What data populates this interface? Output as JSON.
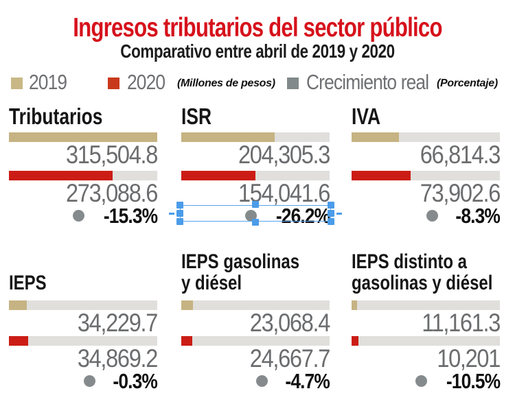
{
  "header": {
    "title": "Ingresos tributarios del sector público",
    "subtitle": "Comparativo entre abril de 2019 y 2020"
  },
  "legend": {
    "items": [
      {
        "label": "2019",
        "color": "#c9b886"
      },
      {
        "label": "2020",
        "color": "#c8391b"
      },
      {
        "label": "Crecimiento real",
        "color": "#82898b"
      }
    ],
    "notes": [
      {
        "text": "(Millones de pesos)"
      },
      {
        "text": "(Porcentaje)"
      }
    ]
  },
  "panels": [
    {
      "title_lines": [
        "Tributarios"
      ],
      "value_2019": "315,504.8",
      "value_2020": "273,088.6",
      "growth": "-15.3%",
      "fill_2019_pct": 100,
      "fill_2020_pct": 70,
      "selected": false
    },
    {
      "title_lines": [
        "ISR"
      ],
      "value_2019": "204,305.3",
      "value_2020": "154,041.6",
      "growth": "-26.2%",
      "fill_2019_pct": 63,
      "fill_2020_pct": 50,
      "selected": true
    },
    {
      "title_lines": [
        "IVA"
      ],
      "value_2019": "66,814.3",
      "value_2020": "73,902.6",
      "growth": "-8.3%",
      "fill_2019_pct": 32,
      "fill_2020_pct": 40,
      "selected": false
    },
    {
      "title_lines": [
        "IEPS"
      ],
      "value_2019": "34,229.7",
      "value_2020": "34,869.2",
      "growth": "-0.3%",
      "fill_2019_pct": 12,
      "fill_2020_pct": 13,
      "selected": false
    },
    {
      "title_lines": [
        "IEPS gasolinas",
        "y diésel"
      ],
      "value_2019": "23,068.4",
      "value_2020": "24,667.7",
      "growth": "-4.7%",
      "fill_2019_pct": 8,
      "fill_2020_pct": 7.5,
      "selected": false
    },
    {
      "title_lines": [
        "IEPS distinto a",
        "gasolinas y diésel"
      ],
      "value_2019": "11,161.3",
      "value_2020": "10,201",
      "growth": "-10.5%",
      "fill_2019_pct": 3.5,
      "fill_2020_pct": 4.5,
      "selected": false
    }
  ],
  "chart_data": {
    "type": "bar",
    "title": "Ingresos tributarios del sector público",
    "subtitle": "Comparativo entre abril de 2019 y 2020",
    "units": "Millones de pesos",
    "growth_units": "Porcentaje",
    "categories": [
      "Tributarios",
      "ISR",
      "IVA",
      "IEPS",
      "IEPS gasolinas y diésel",
      "IEPS distinto a gasolinas y diésel"
    ],
    "series": [
      {
        "name": "2019",
        "values": [
          315504.8,
          204305.3,
          66814.3,
          34229.7,
          23068.4,
          11161.3
        ]
      },
      {
        "name": "2020",
        "values": [
          273088.6,
          154041.6,
          73902.6,
          34869.2,
          24667.7,
          10201
        ]
      }
    ],
    "growth_real_pct": [
      -15.3,
      -26.2,
      -8.3,
      -0.3,
      -4.7,
      -10.5
    ],
    "legend_position": "top",
    "grid": false,
    "layout": "3x2 small-multiple horizontal progress bars, values right-aligned under each bar"
  },
  "colors": {
    "title_red": "#d6121c",
    "bar_2019_tan": "#c6b383",
    "bar_2020_red": "#cb1d15",
    "bar_track_gray": "#e0dfdc",
    "growth_dot_gray": "#858b8c",
    "value_text_gray": "#6b6c6e",
    "selection_blue": "#4b9ce9"
  },
  "selection_overlay": {
    "target": "ISR growth row (-26.2%)",
    "handle_count": 8
  }
}
